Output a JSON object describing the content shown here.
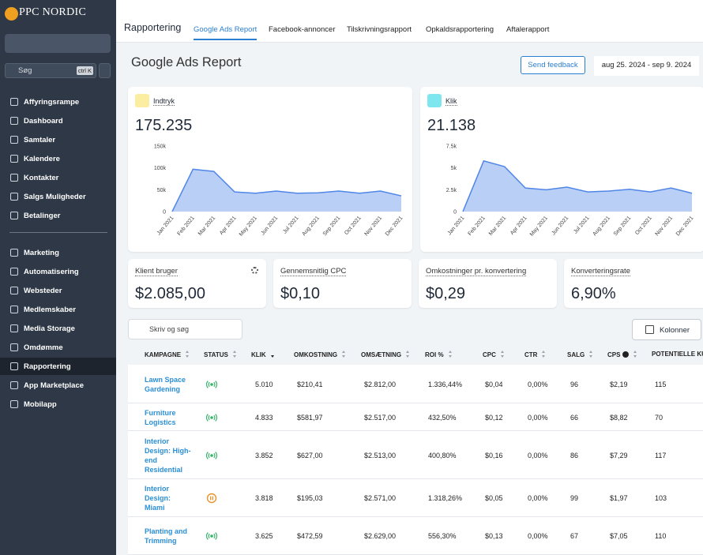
{
  "sidebar": {
    "brand": "PPC NORDIC",
    "search": "Søg",
    "shortcut": "ctrl K",
    "nav_groups": [
      [
        {
          "label": "Affyringsrampe"
        },
        {
          "label": "Dashboard"
        },
        {
          "label": "Samtaler"
        },
        {
          "label": "Kalendere"
        },
        {
          "label": "Kontakter"
        },
        {
          "label": "Salgs Muligheder"
        },
        {
          "label": "Betalinger"
        }
      ],
      [
        {
          "label": "Marketing"
        },
        {
          "label": "Automatisering"
        },
        {
          "label": "Websteder"
        },
        {
          "label": "Medlemskaber"
        },
        {
          "label": "Media Storage"
        },
        {
          "label": "Omdømme"
        },
        {
          "label": "Rapportering",
          "active": true
        },
        {
          "label": "App Marketplace"
        },
        {
          "label": "Mobilapp"
        }
      ]
    ]
  },
  "topbar": {
    "title": "Rapportering",
    "tabs": [
      {
        "label": "Google Ads Report",
        "active": true
      },
      {
        "label": "Facebook-annoncer"
      },
      {
        "label": "Tilskrivningsrapport"
      },
      {
        "label": "Opkaldsrapportering"
      },
      {
        "label": "Aftalerapport"
      }
    ]
  },
  "header": {
    "title": "Google Ads Report",
    "button": "Send feedback",
    "date_range": "aug 25. 2024 - sep 9. 2024"
  },
  "chart_data": [
    {
      "type": "area",
      "title": "Indtryk",
      "total": "175.235",
      "icon_color": "#fbeea0",
      "categories": [
        "Jan 2021",
        "Feb 2021",
        "Mar 2021",
        "Apr 2021",
        "May 2021",
        "Jun 2021",
        "Jul 2021",
        "Aug 2021",
        "Sep 2021",
        "Oct 2021",
        "Nov 2021",
        "Dec 2021"
      ],
      "series": [
        {
          "name": "Indtryk",
          "color": "#4f86e8",
          "values": [
            0,
            97000,
            92000,
            45000,
            42000,
            47000,
            42000,
            43000,
            47000,
            42000,
            47000,
            36000
          ]
        }
      ],
      "ylim": [
        0,
        150000
      ],
      "yticks": [
        0,
        {
          "value": 50000,
          "label": "50k"
        },
        {
          "value": 100000,
          "label": "100k"
        },
        {
          "value": 150000,
          "label": "150k"
        }
      ],
      "grid": false
    },
    {
      "type": "area",
      "title": "Klik",
      "total": "21.138",
      "icon_color": "#7ee6ef",
      "categories": [
        "Jan 2021",
        "Feb 2021",
        "Mar 2021",
        "Apr 2021",
        "May 2021",
        "Jun 2021",
        "Jul 2021",
        "Aug 2021",
        "Sep 2021",
        "Oct 2021",
        "Nov 2021",
        "Dec 2021"
      ],
      "series": [
        {
          "name": "Klik",
          "color": "#4f86e8",
          "values": [
            0,
            5800,
            5150,
            2700,
            2500,
            2800,
            2250,
            2350,
            2550,
            2250,
            2700,
            2100
          ]
        }
      ],
      "ylim": [
        0,
        7500
      ],
      "yticks": [
        0,
        {
          "value": 2500,
          "label": "2.5k"
        },
        {
          "value": 5000,
          "label": "5k"
        },
        {
          "value": 7500,
          "label": "7.5k"
        }
      ],
      "grid": false
    }
  ],
  "kpis": [
    {
      "label": "Klient bruger",
      "value": "$2.085,00",
      "settings": true
    },
    {
      "label": "Gennemsnitlig CPC",
      "value": "$0,10"
    },
    {
      "label": "Omkostninger pr. konvertering",
      "value": "$0,29"
    },
    {
      "label": "Konverteringsrate",
      "value": "6,90%"
    }
  ],
  "table": {
    "search_placeholder": "Skriv og søg",
    "columns_button": "Kolonner",
    "columns": [
      {
        "label": "KAMPAGNE",
        "sortable": true
      },
      {
        "label": "STATUS",
        "sortable": true
      },
      {
        "label": "KLIK",
        "sort": "desc"
      },
      {
        "label": "OMKOSTNING",
        "sortable": true
      },
      {
        "label": "OMSÆTNING",
        "sortable": true
      },
      {
        "label": "ROI %",
        "sortable": true
      },
      {
        "label": "CPC",
        "sortable": true
      },
      {
        "label": "CTR",
        "sortable": true
      },
      {
        "label": "SALG",
        "sortable": true
      },
      {
        "label": "CPS",
        "sortable": true,
        "help": true
      },
      {
        "label": "POTENTIELLE KUNDER"
      }
    ],
    "rows": [
      {
        "campaign": "Lawn Space Gardening",
        "status": "active",
        "cells": [
          "5.010",
          "$210,41",
          "$2.812,00",
          "1.336,44%",
          "$0,04",
          "0,00%",
          "96",
          "$2,19",
          "115"
        ]
      },
      {
        "campaign": "Furniture Logistics",
        "status": "active",
        "cells": [
          "4.833",
          "$581,97",
          "$2.517,00",
          "432,50%",
          "$0,12",
          "0,00%",
          "66",
          "$8,82",
          "70"
        ]
      },
      {
        "campaign": "Interior Design: High-end Residential",
        "status": "active",
        "cells": [
          "3.852",
          "$627,00",
          "$2.513,00",
          "400,80%",
          "$0,16",
          "0,00%",
          "86",
          "$7,29",
          "117"
        ]
      },
      {
        "campaign": "Interior Design: Miami",
        "status": "paused",
        "cells": [
          "3.818",
          "$195,03",
          "$2.571,00",
          "1.318,26%",
          "$0,05",
          "0,00%",
          "99",
          "$1,97",
          "103"
        ]
      },
      {
        "campaign": "Planting and Trimming",
        "status": "active",
        "cells": [
          "3.625",
          "$472,59",
          "$2.629,00",
          "556,30%",
          "$0,13",
          "0,00%",
          "67",
          "$7,05",
          "110"
        ]
      }
    ]
  }
}
